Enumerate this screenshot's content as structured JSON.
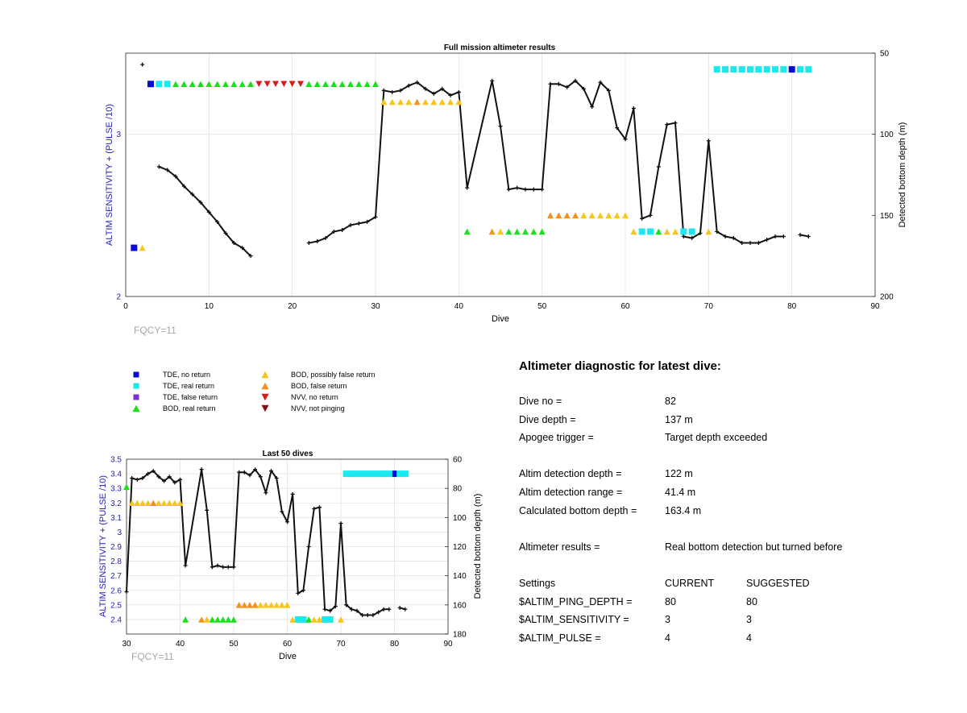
{
  "colors": {
    "tde_no_return": "#0b0bd1",
    "tde_real_return": "#1ee8ef",
    "tde_false_return": "#7b2fd1",
    "bod_real_return": "#19e019",
    "bod_possibly_false": "#f7c51c",
    "bod_false": "#f0921c",
    "nvv_no_return": "#d81b1b",
    "nvv_not_pinging": "#8b0f0f",
    "line": "#111111",
    "axis_left": "#1f1fb8",
    "grid": "#e3e3e3"
  },
  "fqcy_label": "FQCY=11",
  "legend": [
    {
      "key": "tde_no_return",
      "shape": "square",
      "label": "TDE, no return"
    },
    {
      "key": "tde_real_return",
      "shape": "square",
      "label": "TDE, real return"
    },
    {
      "key": "tde_false_return",
      "shape": "square",
      "label": "TDE, false return"
    },
    {
      "key": "bod_real_return",
      "shape": "triangle-up",
      "label": "BOD, real return"
    },
    {
      "key": "bod_possibly_false",
      "shape": "triangle-up",
      "label": "BOD, possibly false return"
    },
    {
      "key": "bod_false",
      "shape": "triangle-up",
      "label": "BOD, false return"
    },
    {
      "key": "nvv_no_return",
      "shape": "triangle-down",
      "label": "NVV, no return"
    },
    {
      "key": "nvv_not_pinging",
      "shape": "triangle-down",
      "label": "NVV, not pinging"
    }
  ],
  "chart_data": [
    {
      "type": "line",
      "title": "Full mission altimeter results",
      "xlabel": "Dive",
      "ylabel": "ALTIM SENSITIVITY + (PULSE /10)",
      "ylabel_right": "Detected bottom depth (m)",
      "xlim": [
        0,
        90
      ],
      "xticks": [
        0,
        10,
        20,
        30,
        40,
        50,
        60,
        70,
        80,
        90
      ],
      "ylim_left": [
        2,
        3.5
      ],
      "yticks_left": [
        2,
        3
      ],
      "ylim_right": [
        200,
        50
      ],
      "yticks_right": [
        50,
        100,
        150,
        200
      ],
      "grid": true,
      "depth_series": [
        [
          [
            2,
            57
          ]
        ],
        [
          [
            4,
            120
          ],
          [
            5,
            122
          ],
          [
            6,
            126
          ],
          [
            7,
            132
          ],
          [
            8,
            137
          ],
          [
            9,
            142
          ],
          [
            10,
            148
          ],
          [
            11,
            154
          ],
          [
            12,
            161
          ],
          [
            13,
            167
          ],
          [
            14,
            170
          ],
          [
            15,
            175
          ]
        ],
        [
          [
            22,
            167
          ],
          [
            23,
            166
          ],
          [
            24,
            164
          ],
          [
            25,
            160
          ],
          [
            26,
            159
          ],
          [
            27,
            156
          ],
          [
            28,
            155
          ],
          [
            29,
            154
          ],
          [
            30,
            151
          ],
          [
            31,
            73
          ],
          [
            32,
            74
          ],
          [
            33,
            73
          ],
          [
            34,
            70
          ],
          [
            35,
            68
          ],
          [
            36,
            72
          ],
          [
            37,
            75
          ],
          [
            38,
            72
          ],
          [
            39,
            76
          ],
          [
            40,
            74
          ],
          [
            41,
            133
          ],
          [
            44,
            67
          ],
          [
            45,
            95
          ],
          [
            46,
            134
          ],
          [
            47,
            133
          ],
          [
            48,
            134
          ],
          [
            49,
            134
          ],
          [
            50,
            134
          ],
          [
            51,
            69
          ],
          [
            52,
            69
          ],
          [
            53,
            71
          ],
          [
            54,
            67
          ],
          [
            55,
            72
          ],
          [
            56,
            83
          ],
          [
            57,
            68
          ],
          [
            58,
            73
          ],
          [
            59,
            96
          ],
          [
            60,
            103
          ],
          [
            61,
            84
          ],
          [
            62,
            152
          ],
          [
            63,
            150
          ],
          [
            64,
            120
          ],
          [
            65,
            94
          ],
          [
            66,
            93
          ],
          [
            67,
            163
          ],
          [
            68,
            164
          ],
          [
            69,
            161
          ],
          [
            70,
            104
          ],
          [
            71,
            160
          ],
          [
            72,
            163
          ],
          [
            73,
            164
          ],
          [
            74,
            167
          ],
          [
            75,
            167
          ],
          [
            76,
            167
          ],
          [
            77,
            165
          ],
          [
            78,
            163
          ],
          [
            79,
            163
          ]
        ],
        [
          [
            81,
            162
          ],
          [
            82,
            163
          ]
        ]
      ],
      "markers": [
        {
          "key": "tde_no_return",
          "shape": "square",
          "points": [
            [
              1,
              2.3
            ],
            [
              3,
              3.31
            ],
            [
              80,
              3.4
            ]
          ]
        },
        {
          "key": "tde_real_return",
          "shape": "square",
          "points": [
            [
              4,
              3.31
            ],
            [
              5,
              3.31
            ],
            [
              71,
              3.4
            ],
            [
              72,
              3.4
            ],
            [
              73,
              3.4
            ],
            [
              74,
              3.4
            ],
            [
              75,
              3.4
            ],
            [
              76,
              3.4
            ],
            [
              77,
              3.4
            ],
            [
              78,
              3.4
            ],
            [
              79,
              3.4
            ],
            [
              81,
              3.4
            ],
            [
              82,
              3.4
            ],
            [
              62,
              2.4
            ],
            [
              63,
              2.4
            ],
            [
              67,
              2.4
            ],
            [
              68,
              2.4
            ]
          ]
        },
        {
          "key": "bod_real_return",
          "shape": "triangle-up",
          "points": [
            [
              6,
              3.31
            ],
            [
              7,
              3.31
            ],
            [
              8,
              3.31
            ],
            [
              9,
              3.31
            ],
            [
              10,
              3.31
            ],
            [
              11,
              3.31
            ],
            [
              12,
              3.31
            ],
            [
              13,
              3.31
            ],
            [
              14,
              3.31
            ],
            [
              15,
              3.31
            ],
            [
              22,
              3.31
            ],
            [
              23,
              3.31
            ],
            [
              24,
              3.31
            ],
            [
              25,
              3.31
            ],
            [
              26,
              3.31
            ],
            [
              27,
              3.31
            ],
            [
              28,
              3.31
            ],
            [
              29,
              3.31
            ],
            [
              30,
              3.31
            ],
            [
              41,
              2.4
            ],
            [
              46,
              2.4
            ],
            [
              47,
              2.4
            ],
            [
              48,
              2.4
            ],
            [
              49,
              2.4
            ],
            [
              50,
              2.4
            ],
            [
              64,
              2.4
            ]
          ]
        },
        {
          "key": "nvv_no_return",
          "shape": "triangle-down",
          "points": [
            [
              16,
              3.31
            ],
            [
              17,
              3.31
            ],
            [
              18,
              3.31
            ],
            [
              19,
              3.31
            ],
            [
              20,
              3.31
            ],
            [
              21,
              3.31
            ]
          ]
        },
        {
          "key": "bod_possibly_false",
          "shape": "triangle-up",
          "points": [
            [
              2,
              2.3
            ],
            [
              31,
              3.2
            ],
            [
              32,
              3.2
            ],
            [
              33,
              3.2
            ],
            [
              34,
              3.2
            ],
            [
              36,
              3.2
            ],
            [
              37,
              3.2
            ],
            [
              38,
              3.2
            ],
            [
              39,
              3.2
            ],
            [
              40,
              3.2
            ],
            [
              45,
              2.4
            ],
            [
              55,
              2.5
            ],
            [
              56,
              2.5
            ],
            [
              57,
              2.5
            ],
            [
              58,
              2.5
            ],
            [
              59,
              2.5
            ],
            [
              60,
              2.5
            ],
            [
              61,
              2.4
            ],
            [
              65,
              2.4
            ],
            [
              66,
              2.4
            ],
            [
              70,
              2.4
            ]
          ]
        },
        {
          "key": "bod_false",
          "shape": "triangle-up",
          "points": [
            [
              35,
              3.2
            ],
            [
              44,
              2.4
            ],
            [
              51,
              2.5
            ],
            [
              52,
              2.5
            ],
            [
              53,
              2.5
            ],
            [
              54,
              2.5
            ]
          ]
        }
      ]
    },
    {
      "type": "line",
      "title": "Last 50 dives",
      "xlabel": "Dive",
      "ylabel": "ALTIM SENSITIVITY + (PULSE /10)",
      "ylabel_right": "Detected bottom depth (m)",
      "xlim": [
        30,
        90
      ],
      "xticks": [
        30,
        40,
        50,
        60,
        70,
        80,
        90
      ],
      "ylim_left": [
        2.3,
        3.5
      ],
      "yticks_left": [
        "2.4",
        "2.5",
        "2.6",
        "2.7",
        "2.8",
        "2.9",
        "3",
        "3.1",
        "3.2",
        "3.3",
        "3.4",
        "3.5"
      ],
      "ylim_right": [
        180,
        60
      ],
      "yticks_right": [
        60,
        80,
        100,
        120,
        140,
        160,
        180
      ],
      "grid": true
    }
  ],
  "diagnostic": {
    "heading": "Altimeter diagnostic for latest dive:",
    "dive_no_label": "Dive no =",
    "dive_no": "82",
    "dive_depth_label": "Dive depth =",
    "dive_depth": "137 m",
    "apogee_label": "Apogee trigger =",
    "apogee": "Target depth exceeded",
    "altim_det_depth_label": "Altim detection depth =",
    "altim_det_depth": "122 m",
    "altim_det_range_label": "Altim detection range =",
    "altim_det_range": "41.4 m",
    "calc_bottom_label": "Calculated bottom depth =",
    "calc_bottom": "163.4 m",
    "results_label": "Altimeter results =",
    "results": "Real bottom detection but turned before",
    "settings_label": "Settings",
    "current_label": "CURRENT",
    "suggested_label": "SUGGESTED",
    "ping_label": "$ALTIM_PING_DEPTH =",
    "ping_current": "80",
    "ping_suggested": "80",
    "sens_label": "$ALTIM_SENSITIVITY =",
    "sens_current": "3",
    "sens_suggested": "3",
    "pulse_label": "$ALTIM_PULSE =",
    "pulse_current": "4",
    "pulse_suggested": "4"
  }
}
